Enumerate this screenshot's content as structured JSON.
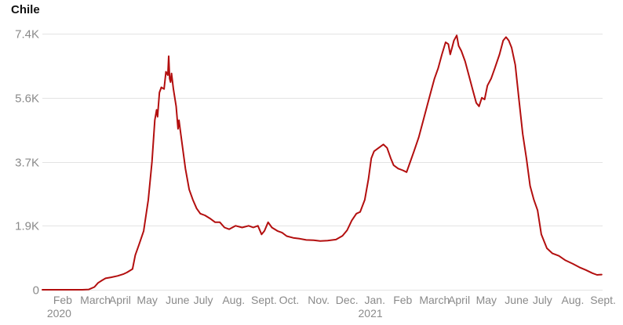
{
  "chart_data": {
    "type": "line",
    "title": "Chile",
    "xlabel": "",
    "ylabel": "",
    "grid": true,
    "ylim": [
      0,
      7400
    ],
    "yticks": [
      {
        "value": 0,
        "label": "0"
      },
      {
        "value": 1850,
        "label": "1.9K"
      },
      {
        "value": 3700,
        "label": "3.7K"
      },
      {
        "value": 5550,
        "label": "5.6K"
      },
      {
        "value": 7400,
        "label": "7.4K"
      }
    ],
    "xticks": [
      {
        "date": "2020-02-01",
        "label": "Feb"
      },
      {
        "date": "2020-03-01",
        "label": "March"
      },
      {
        "date": "2020-04-01",
        "label": "April"
      },
      {
        "date": "2020-05-01",
        "label": "May"
      },
      {
        "date": "2020-06-01",
        "label": "June"
      },
      {
        "date": "2020-07-01",
        "label": "July"
      },
      {
        "date": "2020-08-01",
        "label": "Aug."
      },
      {
        "date": "2020-09-01",
        "label": "Sept."
      },
      {
        "date": "2020-10-01",
        "label": "Oct."
      },
      {
        "date": "2020-11-01",
        "label": "Nov."
      },
      {
        "date": "2020-12-01",
        "label": "Dec."
      },
      {
        "date": "2021-01-01",
        "label": "Jan."
      },
      {
        "date": "2021-02-01",
        "label": "Feb"
      },
      {
        "date": "2021-03-01",
        "label": "March"
      },
      {
        "date": "2021-04-01",
        "label": "April"
      },
      {
        "date": "2021-05-01",
        "label": "May"
      },
      {
        "date": "2021-06-01",
        "label": "June"
      },
      {
        "date": "2021-07-01",
        "label": "July"
      },
      {
        "date": "2021-08-01",
        "label": "Aug."
      },
      {
        "date": "2021-09-01",
        "label": "Sept."
      }
    ],
    "year_labels": [
      {
        "date": "2020-02-01",
        "label": "2020"
      },
      {
        "date": "2021-01-01",
        "label": "2021"
      }
    ],
    "series": [
      {
        "color": "#b30f0f",
        "points": [
          [
            "2020-01-22",
            0
          ],
          [
            "2020-02-15",
            0
          ],
          [
            "2020-03-05",
            0
          ],
          [
            "2020-03-12",
            10
          ],
          [
            "2020-03-18",
            80
          ],
          [
            "2020-03-22",
            200
          ],
          [
            "2020-03-26",
            270
          ],
          [
            "2020-03-30",
            330
          ],
          [
            "2020-04-05",
            360
          ],
          [
            "2020-04-12",
            400
          ],
          [
            "2020-04-18",
            450
          ],
          [
            "2020-04-22",
            500
          ],
          [
            "2020-04-28",
            600
          ],
          [
            "2020-05-01",
            1000
          ],
          [
            "2020-05-05",
            1300
          ],
          [
            "2020-05-10",
            1700
          ],
          [
            "2020-05-15",
            2600
          ],
          [
            "2020-05-19",
            3700
          ],
          [
            "2020-05-22",
            4900
          ],
          [
            "2020-05-24",
            5200
          ],
          [
            "2020-05-25",
            5000
          ],
          [
            "2020-05-27",
            5700
          ],
          [
            "2020-05-29",
            5850
          ],
          [
            "2020-06-01",
            5800
          ],
          [
            "2020-06-03",
            6300
          ],
          [
            "2020-06-05",
            6200
          ],
          [
            "2020-06-06",
            6750
          ],
          [
            "2020-06-07",
            6100
          ],
          [
            "2020-06-08",
            6000
          ],
          [
            "2020-06-09",
            6250
          ],
          [
            "2020-06-11",
            5800
          ],
          [
            "2020-06-14",
            5300
          ],
          [
            "2020-06-16",
            4650
          ],
          [
            "2020-06-17",
            4900
          ],
          [
            "2020-06-19",
            4500
          ],
          [
            "2020-06-24",
            3500
          ],
          [
            "2020-06-28",
            2900
          ],
          [
            "2020-07-02",
            2600
          ],
          [
            "2020-07-06",
            2350
          ],
          [
            "2020-07-10",
            2200
          ],
          [
            "2020-07-15",
            2150
          ],
          [
            "2020-07-21",
            2050
          ],
          [
            "2020-07-26",
            1950
          ],
          [
            "2020-07-31",
            1950
          ],
          [
            "2020-08-05",
            1800
          ],
          [
            "2020-08-10",
            1750
          ],
          [
            "2020-08-17",
            1850
          ],
          [
            "2020-08-24",
            1800
          ],
          [
            "2020-08-31",
            1850
          ],
          [
            "2020-09-05",
            1800
          ],
          [
            "2020-09-10",
            1850
          ],
          [
            "2020-09-14",
            1600
          ],
          [
            "2020-09-17",
            1700
          ],
          [
            "2020-09-21",
            1950
          ],
          [
            "2020-09-25",
            1800
          ],
          [
            "2020-10-01",
            1700
          ],
          [
            "2020-10-06",
            1650
          ],
          [
            "2020-10-11",
            1550
          ],
          [
            "2020-10-18",
            1500
          ],
          [
            "2020-10-24",
            1480
          ],
          [
            "2020-11-01",
            1440
          ],
          [
            "2020-11-09",
            1430
          ],
          [
            "2020-11-16",
            1410
          ],
          [
            "2020-11-24",
            1420
          ],
          [
            "2020-12-03",
            1450
          ],
          [
            "2020-12-10",
            1560
          ],
          [
            "2020-12-15",
            1720
          ],
          [
            "2020-12-20",
            2000
          ],
          [
            "2020-12-25",
            2200
          ],
          [
            "2020-12-29",
            2250
          ],
          [
            "2021-01-03",
            2600
          ],
          [
            "2021-01-07",
            3200
          ],
          [
            "2021-01-10",
            3800
          ],
          [
            "2021-01-13",
            4000
          ],
          [
            "2021-01-18",
            4100
          ],
          [
            "2021-01-23",
            4200
          ],
          [
            "2021-01-27",
            4100
          ],
          [
            "2021-01-31",
            3800
          ],
          [
            "2021-02-03",
            3600
          ],
          [
            "2021-02-08",
            3500
          ],
          [
            "2021-02-13",
            3450
          ],
          [
            "2021-02-17",
            3400
          ],
          [
            "2021-02-21",
            3700
          ],
          [
            "2021-02-25",
            4000
          ],
          [
            "2021-03-02",
            4400
          ],
          [
            "2021-03-07",
            4900
          ],
          [
            "2021-03-11",
            5300
          ],
          [
            "2021-03-15",
            5700
          ],
          [
            "2021-03-19",
            6100
          ],
          [
            "2021-03-23",
            6400
          ],
          [
            "2021-03-27",
            6800
          ],
          [
            "2021-03-31",
            7150
          ],
          [
            "2021-04-03",
            7100
          ],
          [
            "2021-04-05",
            6800
          ],
          [
            "2021-04-07",
            7000
          ],
          [
            "2021-04-09",
            7200
          ],
          [
            "2021-04-12",
            7350
          ],
          [
            "2021-04-14",
            7050
          ],
          [
            "2021-04-17",
            6900
          ],
          [
            "2021-04-21",
            6600
          ],
          [
            "2021-04-25",
            6200
          ],
          [
            "2021-04-29",
            5800
          ],
          [
            "2021-05-03",
            5400
          ],
          [
            "2021-05-06",
            5300
          ],
          [
            "2021-05-09",
            5550
          ],
          [
            "2021-05-12",
            5500
          ],
          [
            "2021-05-15",
            5900
          ],
          [
            "2021-05-19",
            6100
          ],
          [
            "2021-05-23",
            6400
          ],
          [
            "2021-05-28",
            6800
          ],
          [
            "2021-06-01",
            7200
          ],
          [
            "2021-06-04",
            7300
          ],
          [
            "2021-06-07",
            7200
          ],
          [
            "2021-06-10",
            7000
          ],
          [
            "2021-06-14",
            6500
          ],
          [
            "2021-06-18",
            5500
          ],
          [
            "2021-06-22",
            4500
          ],
          [
            "2021-06-26",
            3800
          ],
          [
            "2021-06-30",
            3000
          ],
          [
            "2021-07-04",
            2600
          ],
          [
            "2021-07-08",
            2300
          ],
          [
            "2021-07-12",
            1600
          ],
          [
            "2021-07-18",
            1200
          ],
          [
            "2021-07-24",
            1050
          ],
          [
            "2021-07-31",
            980
          ],
          [
            "2021-08-07",
            850
          ],
          [
            "2021-08-15",
            750
          ],
          [
            "2021-08-22",
            650
          ],
          [
            "2021-08-29",
            570
          ],
          [
            "2021-09-05",
            480
          ],
          [
            "2021-09-10",
            430
          ],
          [
            "2021-09-15",
            440
          ]
        ]
      }
    ]
  }
}
